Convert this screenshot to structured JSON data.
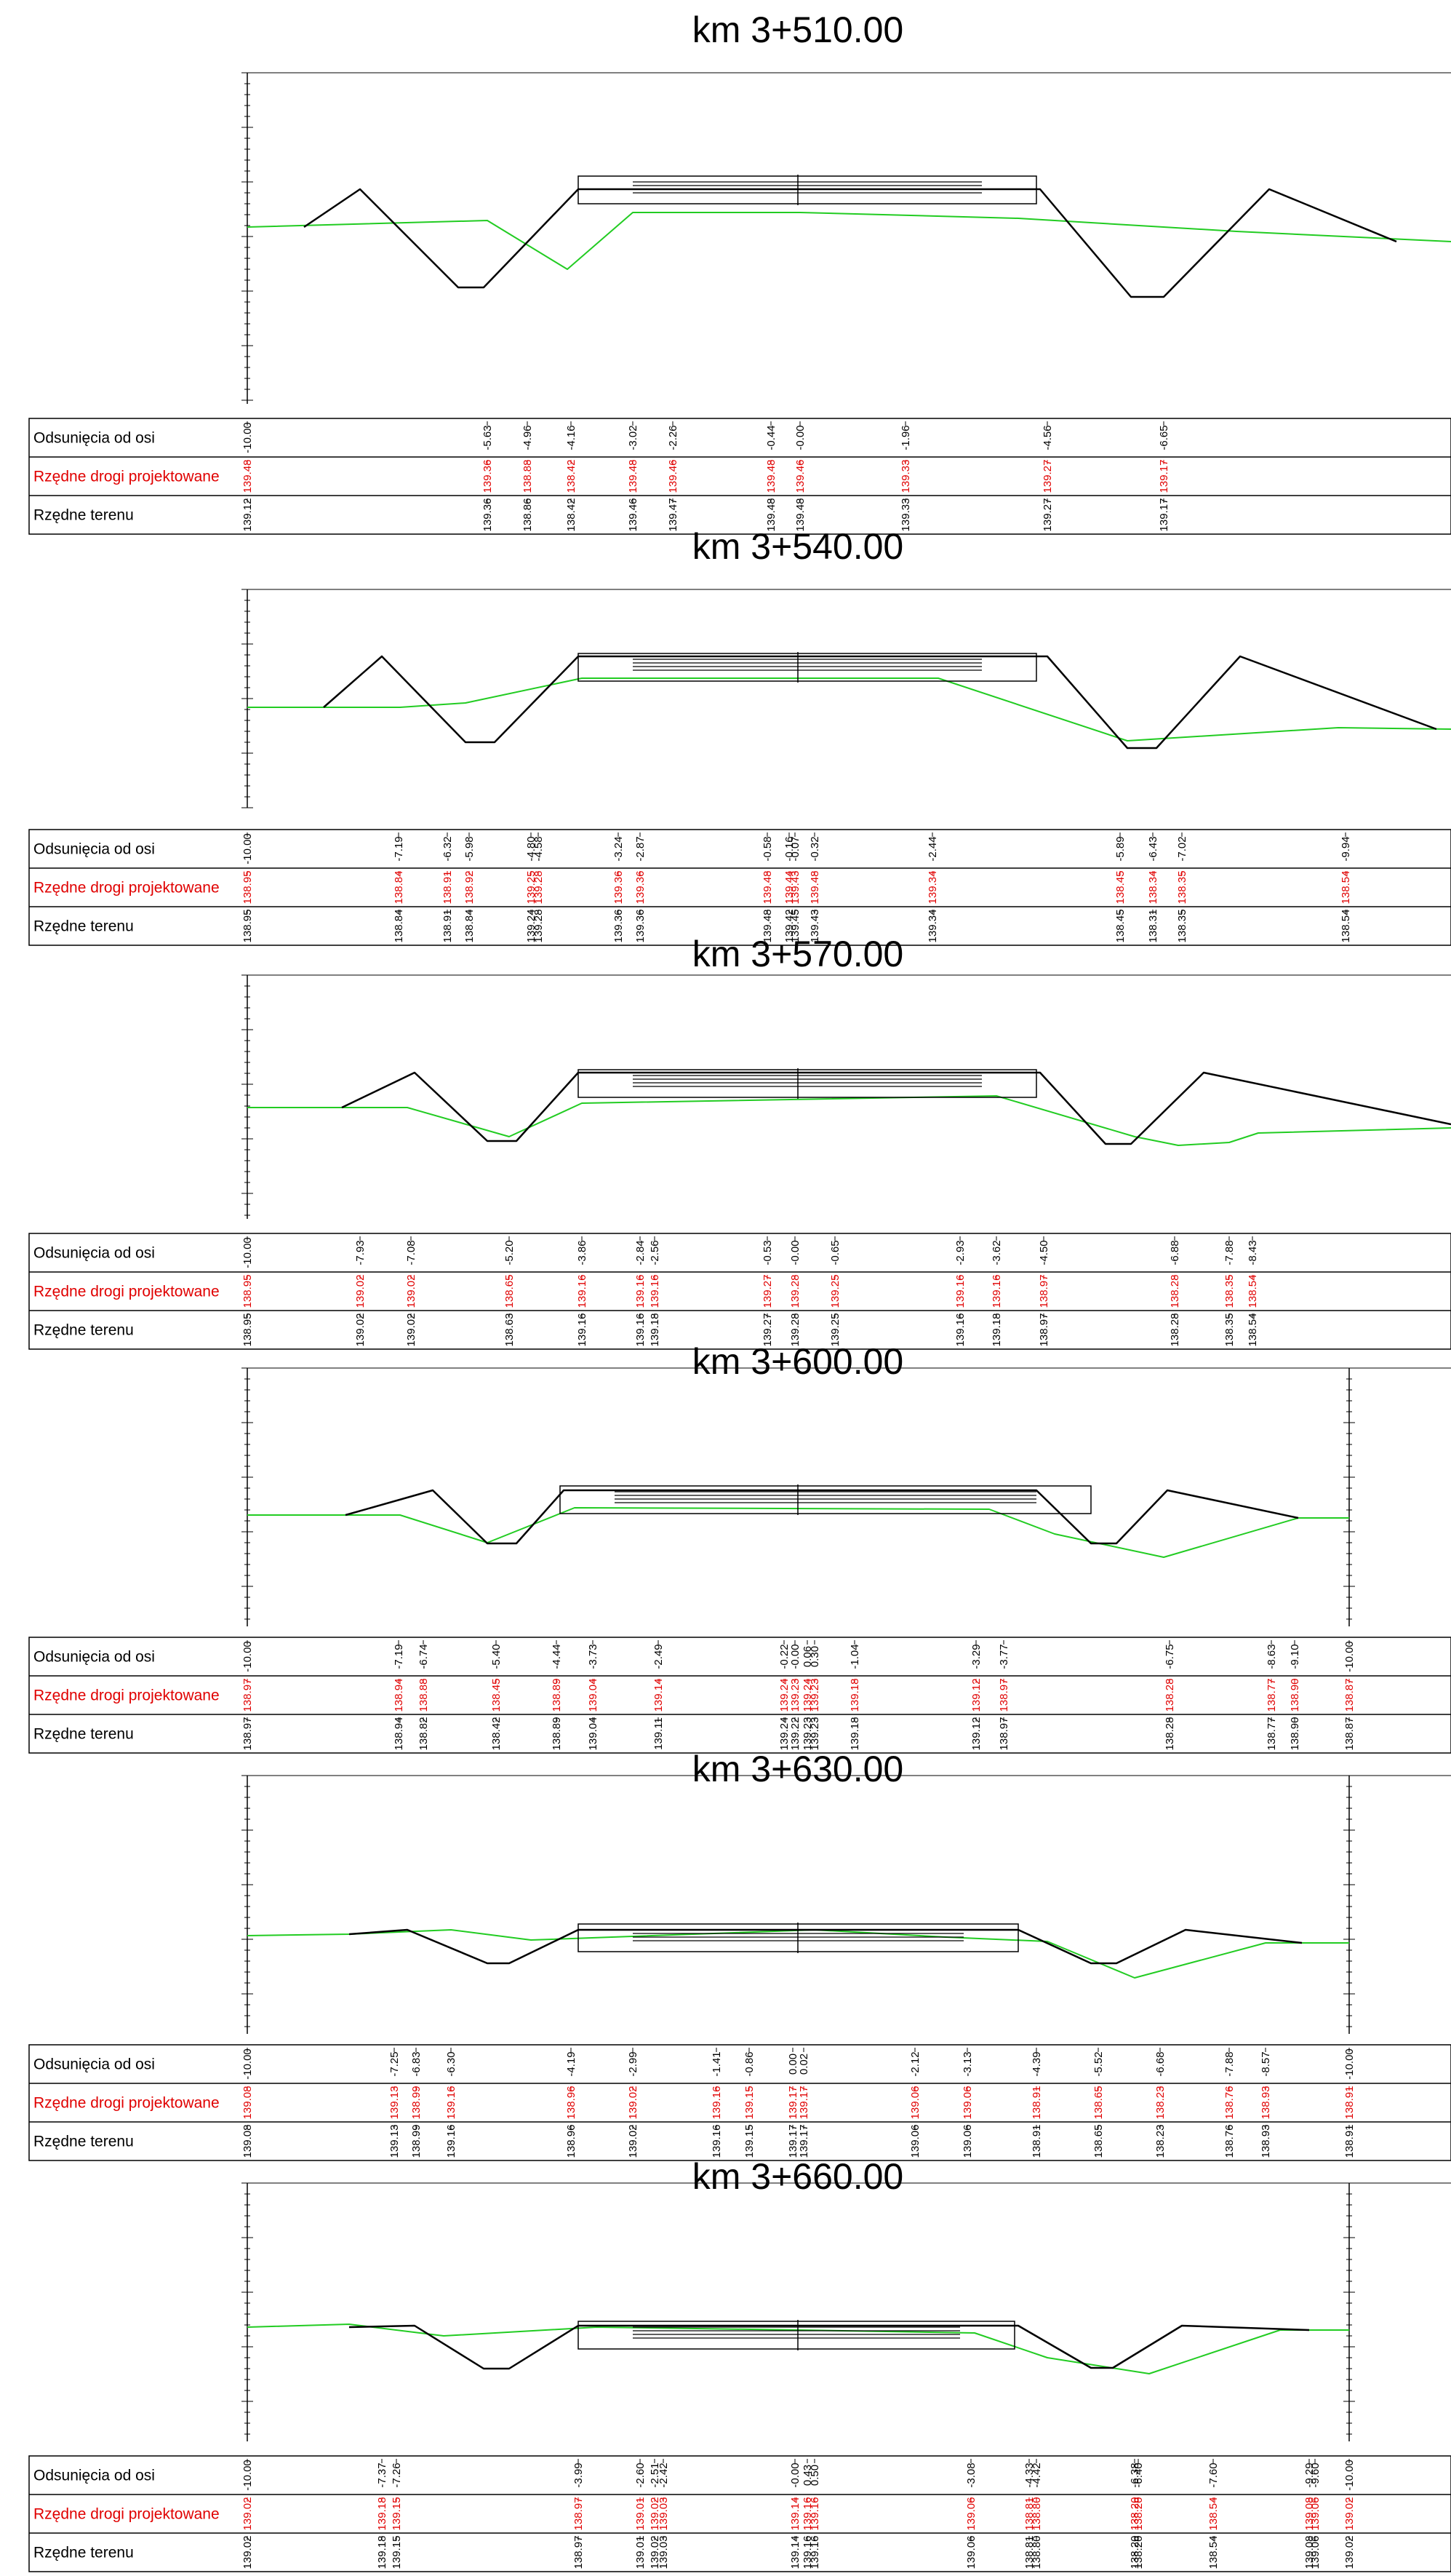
{
  "row_labels": [
    "Odsunięcia od osi",
    "Rzędne drogi projektowane",
    "Rzędne terenu"
  ],
  "colors": {
    "terrain": "#22cc22",
    "design": "#000000",
    "design_elevation": "#e00000",
    "frame": "#000000"
  },
  "sections": [
    {
      "title": "km 3+510.00",
      "offsets": [
        "-10.00",
        "-5.63",
        "-4.96",
        "-4.16",
        "-3.02",
        "-2.26",
        "-0.44",
        "-0.00",
        "-1.96",
        "-4.56",
        "-6.65"
      ],
      "design_elev": [
        "139.48",
        "139.36",
        "138.88",
        "138.42",
        "139.48",
        "139.46",
        "139.48",
        "139.46",
        "139.33",
        "139.27",
        "139.17"
      ],
      "terrain_elev": [
        "139.12",
        "139.36",
        "138.86",
        "138.42",
        "139.46",
        "139.47",
        "139.48",
        "139.48",
        "139.33",
        "139.27",
        "139.17"
      ]
    },
    {
      "title": "km 3+540.00",
      "offsets": [
        "-10.00",
        "-7.19",
        "-6.32",
        "-5.98",
        "-4.80",
        "-4.58",
        "-3.24",
        "-2.87",
        "-0.58",
        "-0.16",
        "-0.07",
        "-0.32",
        "-2.44",
        "-5.89",
        "-6.43",
        "-7.02",
        "-9.94"
      ],
      "design_elev": [
        "138.95",
        "138.84",
        "138.91",
        "138.92",
        "139.25",
        "139.28",
        "139.36",
        "139.36",
        "139.48",
        "139.44",
        "139.43",
        "139.48",
        "139.34",
        "138.45",
        "138.34",
        "138.35",
        "138.54"
      ],
      "terrain_elev": [
        "138.95",
        "138.84",
        "138.91",
        "138.84",
        "139.24",
        "139.28",
        "139.36",
        "139.36",
        "139.48",
        "139.42",
        "139.45",
        "139.43",
        "139.34",
        "138.45",
        "138.31",
        "138.35",
        "138.54"
      ]
    },
    {
      "title": "km 3+570.00",
      "offsets": [
        "-10.00",
        "-7.93",
        "-7.08",
        "-5.20",
        "-3.86",
        "-2.84",
        "-2.56",
        "-0.53",
        "-0.00",
        "-0.65",
        "-2.93",
        "-3.62",
        "-4.50",
        "-6.88",
        "-7.88",
        "-8.43"
      ],
      "design_elev": [
        "138.95",
        "139.02",
        "139.02",
        "138.65",
        "139.16",
        "139.16",
        "139.16",
        "139.27",
        "139.28",
        "139.25",
        "139.16",
        "139.16",
        "138.97",
        "138.28",
        "138.35",
        "138.54"
      ],
      "terrain_elev": [
        "138.95",
        "139.02",
        "139.02",
        "138.63",
        "139.16",
        "139.16",
        "139.18",
        "139.27",
        "139.28",
        "139.25",
        "139.16",
        "139.18",
        "138.97",
        "138.28",
        "138.35",
        "138.54"
      ]
    },
    {
      "title": "km 3+600.00",
      "offsets": [
        "-10.00",
        "-7.19",
        "-6.74",
        "-5.40",
        "-4.44",
        "-3.73",
        "-2.49",
        "-0.22",
        "-0.00",
        "0.06",
        "0.30",
        "-1.04",
        "-3.29",
        "-3.77",
        "-6.75",
        "-8.63",
        "-9.10",
        "-10.00"
      ],
      "design_elev": [
        "138.97",
        "138.94",
        "138.88",
        "138.45",
        "138.89",
        "139.04",
        "139.14",
        "139.24",
        "139.23",
        "139.24",
        "139.23",
        "139.18",
        "139.12",
        "138.97",
        "138.28",
        "138.77",
        "138.90",
        "138.87"
      ],
      "terrain_elev": [
        "138.97",
        "138.94",
        "138.82",
        "138.42",
        "138.89",
        "139.04",
        "139.11",
        "139.24",
        "139.22",
        "139.23",
        "139.23",
        "139.18",
        "139.12",
        "138.97",
        "138.28",
        "138.77",
        "138.90",
        "138.87"
      ]
    },
    {
      "title": "km 3+630.00",
      "offsets": [
        "-10.00",
        "-7.25",
        "-6.83",
        "-6.30",
        "-4.19",
        "-2.99",
        "-1.41",
        "-0.86",
        "0.00",
        "0.02",
        "-2.12",
        "-3.13",
        "-4.39",
        "-5.52",
        "-6.68",
        "-7.88",
        "-8.57",
        "-10.00"
      ],
      "design_elev": [
        "139.08",
        "139.13",
        "138.99",
        "139.16",
        "138.96",
        "139.02",
        "139.16",
        "139.15",
        "139.17",
        "139.17",
        "139.06",
        "139.06",
        "138.91",
        "138.65",
        "138.23",
        "138.76",
        "138.93",
        "138.91"
      ],
      "terrain_elev": [
        "139.08",
        "139.13",
        "138.99",
        "139.16",
        "138.96",
        "139.02",
        "139.16",
        "139.15",
        "139.17",
        "139.17",
        "139.06",
        "139.06",
        "138.91",
        "138.65",
        "138.23",
        "138.76",
        "138.93",
        "138.91"
      ]
    },
    {
      "title": "km 3+660.00",
      "offsets": [
        "-10.00",
        "-7.37",
        "-7.26",
        "-3.99",
        "-2.60",
        "-2.51",
        "-2.42",
        "-0.00",
        "0.43",
        "0.50",
        "-3.08",
        "-4.33",
        "-4.42",
        "-6.38",
        "-6.40",
        "-7.60",
        "-9.29",
        "-9.60",
        "-10.00"
      ],
      "design_elev": [
        "139.02",
        "139.18",
        "139.15",
        "138.97",
        "139.01",
        "139.02",
        "139.03",
        "139.14",
        "139.16",
        "139.16",
        "139.06",
        "138.81",
        "138.80",
        "138.20",
        "138.20",
        "138.54",
        "139.08",
        "139.06",
        "139.02"
      ],
      "terrain_elev": [
        "139.02",
        "139.18",
        "139.15",
        "138.97",
        "139.01",
        "139.02",
        "139.03",
        "139.14",
        "139.16",
        "139.16",
        "139.06",
        "138.81",
        "138.80",
        "138.20",
        "138.20",
        "138.54",
        "139.08",
        "139.06",
        "139.02"
      ]
    }
  ]
}
